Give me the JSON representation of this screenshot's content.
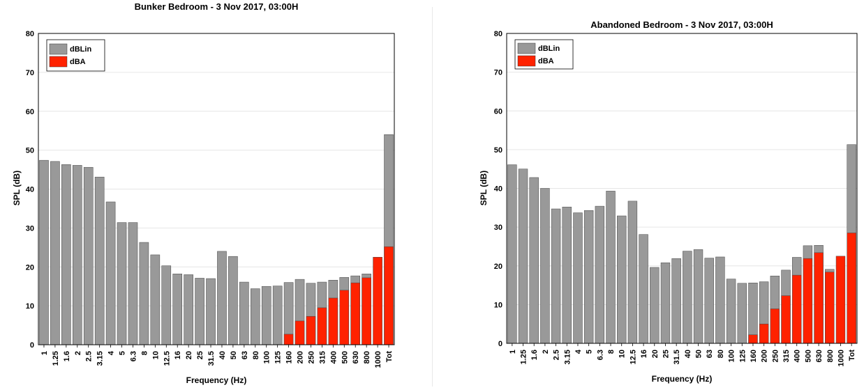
{
  "colors": {
    "lin": "#999999",
    "dba": "#ff2200",
    "grid": "#e6e6e6",
    "axis": "#000000"
  },
  "chart_data": [
    {
      "type": "bar",
      "title": "Bunker Bedroom - 3 Nov 2017, 03:00H",
      "xlabel": "Frequency (Hz)",
      "ylabel": "SPL (dB)",
      "ylim": [
        0,
        80
      ],
      "yticks": [
        0,
        10,
        20,
        30,
        40,
        50,
        60,
        70,
        80
      ],
      "grid": true,
      "legend": "top-left",
      "categories": [
        "1",
        "1.25",
        "1.6",
        "2",
        "2.5",
        "3.15",
        "4",
        "5",
        "6.3",
        "8",
        "10",
        "12.5",
        "16",
        "20",
        "25",
        "31.5",
        "40",
        "50",
        "63",
        "80",
        "100",
        "125",
        "160",
        "200",
        "250",
        "315",
        "400",
        "500",
        "630",
        "800",
        "1000",
        "Tot"
      ],
      "series": [
        {
          "name": "dBLin",
          "values": [
            47.4,
            47.1,
            46.3,
            46.1,
            45.6,
            43.1,
            36.7,
            31.4,
            31.4,
            26.3,
            23.1,
            20.3,
            18.2,
            18.0,
            17.1,
            17.0,
            24.0,
            22.7,
            16.1,
            14.4,
            15.0,
            15.1,
            16.0,
            16.8,
            15.8,
            16.1,
            16.6,
            17.3,
            17.7,
            18.2,
            null,
            54.0
          ]
        },
        {
          "name": "dBA",
          "values": [
            null,
            null,
            null,
            null,
            null,
            null,
            null,
            null,
            null,
            null,
            null,
            null,
            null,
            null,
            null,
            null,
            null,
            null,
            null,
            null,
            null,
            null,
            2.7,
            6.1,
            7.3,
            9.5,
            12.0,
            14.0,
            15.9,
            17.2,
            22.5,
            25.2
          ]
        }
      ]
    },
    {
      "type": "bar",
      "title": "Abandoned Bedroom - 3 Nov 2017, 03:00H",
      "xlabel": "Frequency (Hz)",
      "ylabel": "SPL (dB)",
      "ylim": [
        0,
        80
      ],
      "yticks": [
        0,
        10,
        20,
        30,
        40,
        50,
        60,
        70,
        80
      ],
      "grid": true,
      "legend": "top-left",
      "categories": [
        "1",
        "1.25",
        "1.6",
        "2",
        "2.5",
        "3.15",
        "4",
        "5",
        "6.3",
        "8",
        "10",
        "12.5",
        "16",
        "20",
        "25",
        "31.5",
        "40",
        "50",
        "63",
        "80",
        "100",
        "125",
        "160",
        "200",
        "250",
        "315",
        "400",
        "500",
        "630",
        "800",
        "1000",
        "Tot"
      ],
      "series": [
        {
          "name": "dBLin",
          "values": [
            46.1,
            45.0,
            42.8,
            40.0,
            34.7,
            35.2,
            33.7,
            34.3,
            35.4,
            39.3,
            32.9,
            36.7,
            28.1,
            19.6,
            20.8,
            21.9,
            23.8,
            24.2,
            22.0,
            22.3,
            16.6,
            15.5,
            15.6,
            15.9,
            17.4,
            18.9,
            22.2,
            25.2,
            25.3,
            19.1,
            null,
            51.3
          ]
        },
        {
          "name": "dBA",
          "values": [
            null,
            null,
            null,
            null,
            null,
            null,
            null,
            null,
            null,
            null,
            null,
            null,
            null,
            null,
            null,
            null,
            null,
            null,
            null,
            null,
            null,
            null,
            2.2,
            5.0,
            8.9,
            12.3,
            17.6,
            21.9,
            23.4,
            18.4,
            22.5,
            28.5
          ]
        }
      ]
    }
  ]
}
